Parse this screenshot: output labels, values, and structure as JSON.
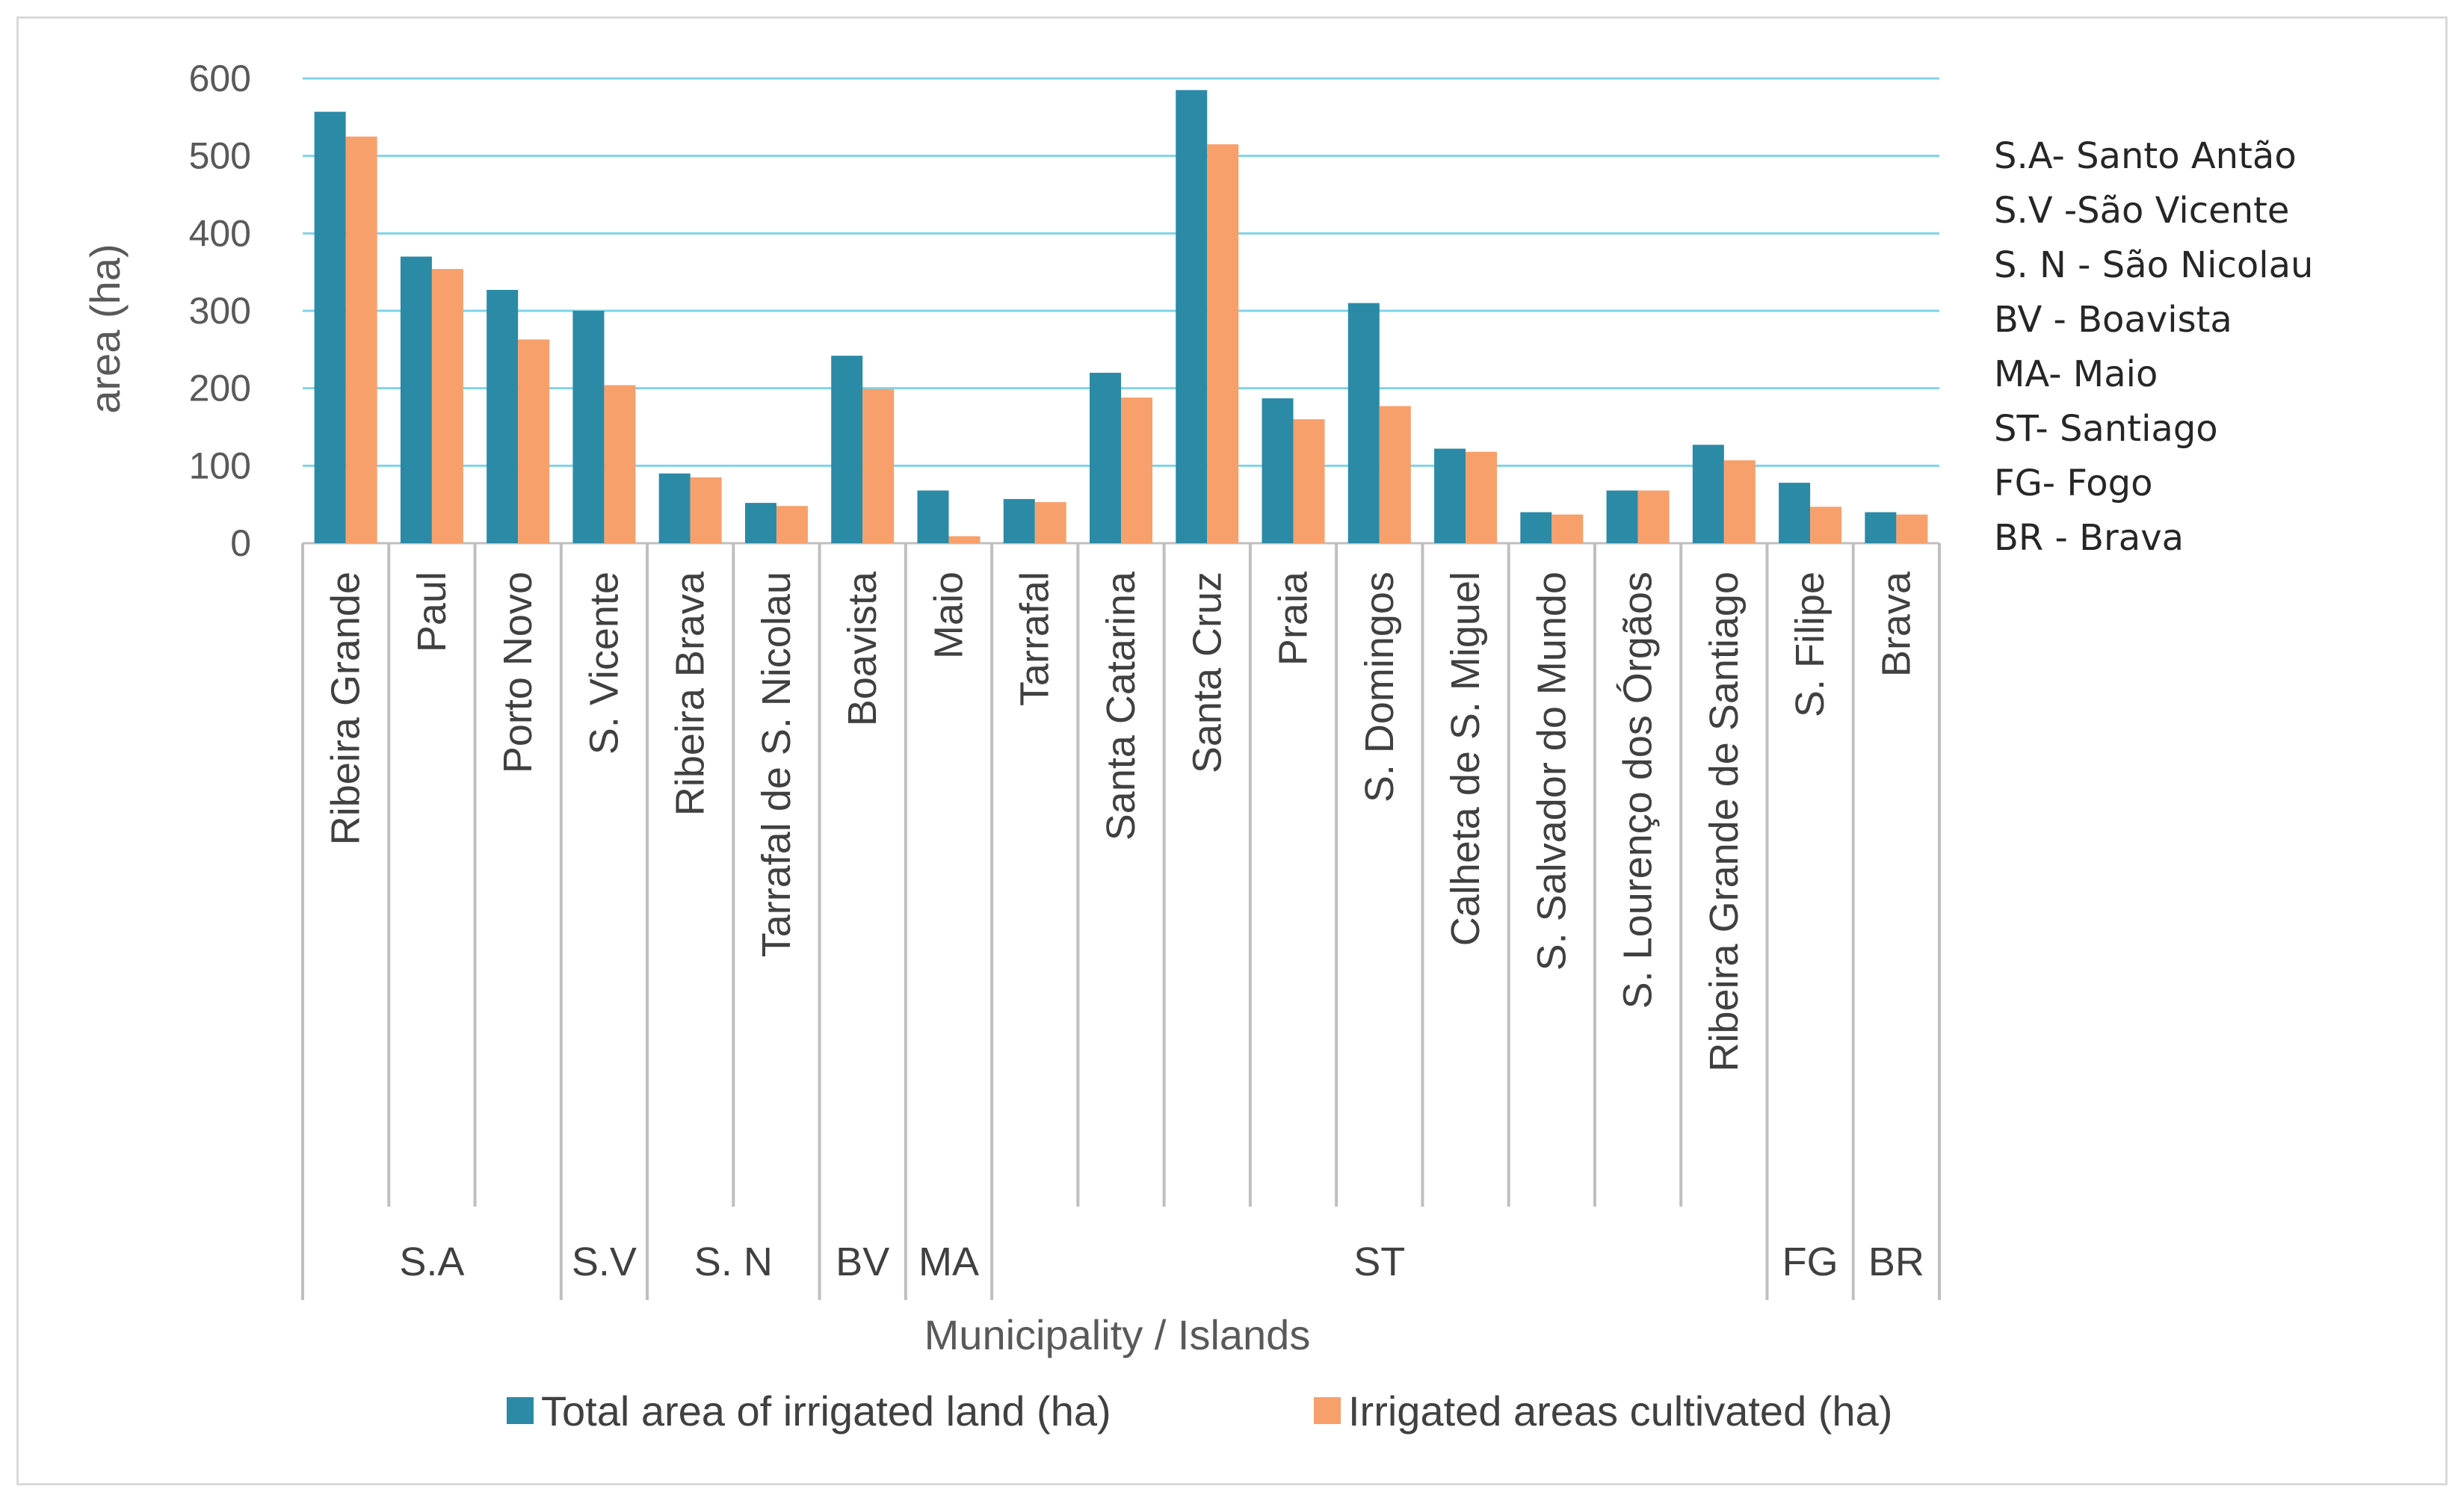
{
  "chart_data": {
    "type": "bar",
    "xlabel": "Municipality / Islands",
    "ylabel": "area (ha)",
    "ylim": [
      0,
      600
    ],
    "yticks": [
      0,
      100,
      200,
      300,
      400,
      500,
      600
    ],
    "grid": true,
    "categories": [
      "Ribeira Grande",
      "Paul",
      "Porto Novo",
      "S. Vicente",
      "Ribeira Brava",
      "Tarrafal de S. Nicolau",
      "Boavista",
      "Maio",
      "Tarrafal",
      "Santa Catarina",
      "Santa Cruz",
      "Praia",
      "S. Domingos",
      "Calheta de S. Miguel",
      "S. Salvador do Mundo",
      "S. Lourenço dos Órgãos",
      "Ribeira Grande de Santiago",
      "S. Filipe",
      "Brava"
    ],
    "groups": [
      {
        "label": "S.A",
        "count": 3
      },
      {
        "label": "S.V",
        "count": 1
      },
      {
        "label": "S. N",
        "count": 2
      },
      {
        "label": "BV",
        "count": 1
      },
      {
        "label": "MA",
        "count": 1
      },
      {
        "label": "ST",
        "count": 9
      },
      {
        "label": "FG",
        "count": 1
      },
      {
        "label": "BR",
        "count": 1
      }
    ],
    "series": [
      {
        "name": "Total area of irrigated land (ha)",
        "color": "#2b8aa6",
        "values": [
          557,
          370,
          327,
          300,
          90,
          52,
          242,
          68,
          57,
          220,
          585,
          187,
          310,
          122,
          40,
          68,
          127,
          78,
          40
        ]
      },
      {
        "name": "Irrigated areas cultivated  (ha)",
        "color": "#f7a06c",
        "values": [
          525,
          354,
          263,
          204,
          85,
          48,
          199,
          9,
          53,
          188,
          515,
          160,
          177,
          118,
          37,
          68,
          107,
          47,
          37
        ]
      }
    ],
    "legend_position": "bottom",
    "annotations": [
      "S.A- Santo Antão",
      "S.V -São Vicente",
      "S. N - São Nicolau",
      "BV - Boavista",
      "MA- Maio",
      "ST-  Santiago",
      "FG- Fogo",
      "BR -  Brava"
    ]
  }
}
